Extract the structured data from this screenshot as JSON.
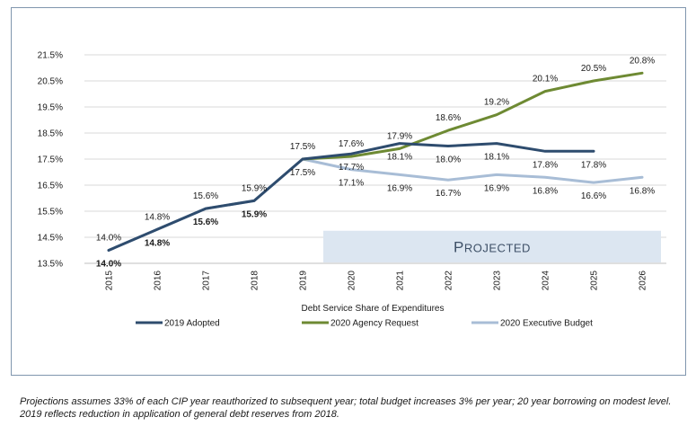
{
  "chart_data": {
    "type": "line",
    "categories": [
      "2015",
      "2016",
      "2017",
      "2018",
      "2019",
      "2020",
      "2021",
      "2022",
      "2023",
      "2024",
      "2025",
      "2026"
    ],
    "xlabel": "Debt Service Share of Expenditures",
    "ylabel": "",
    "ylim": [
      13.5,
      21.5
    ],
    "yticks": [
      13.5,
      14.5,
      15.5,
      16.5,
      17.5,
      18.5,
      19.5,
      20.5,
      21.5
    ],
    "ytick_labels": [
      "13.5%",
      "14.5%",
      "15.5%",
      "16.5%",
      "17.5%",
      "18.5%",
      "19.5%",
      "20.5%",
      "21.5%"
    ],
    "grid": "horizontal",
    "legend_position": "bottom",
    "annotation": "Projected",
    "series": [
      {
        "name": "2019 Adopted",
        "color": "#2e4c6e",
        "values": [
          14.0,
          14.8,
          15.6,
          15.9,
          17.5,
          17.7,
          18.1,
          18.0,
          18.1,
          17.8,
          17.8,
          null
        ]
      },
      {
        "name": "2020 Agency Request",
        "color": "#6e8a33",
        "values": [
          null,
          null,
          null,
          null,
          17.5,
          17.6,
          17.9,
          18.6,
          19.2,
          20.1,
          20.5,
          20.8
        ]
      },
      {
        "name": "2020 Executive Budget",
        "color": "#a8bdd6",
        "values": [
          14.0,
          14.8,
          15.6,
          15.9,
          17.5,
          17.1,
          16.9,
          16.7,
          16.9,
          16.8,
          16.6,
          16.8
        ]
      }
    ],
    "data_labels": [
      {
        "category": "2015",
        "value": 14.0,
        "text": "14.0%",
        "position": "above",
        "bold": false
      },
      {
        "category": "2016",
        "value": 14.8,
        "text": "14.8%",
        "position": "above",
        "bold": false
      },
      {
        "category": "2017",
        "value": 15.6,
        "text": "15.6%",
        "position": "above",
        "bold": false
      },
      {
        "category": "2018",
        "value": 15.9,
        "text": "15.9%",
        "position": "above",
        "bold": false
      },
      {
        "category": "2019",
        "value": 17.5,
        "text": "17.5%",
        "position": "above",
        "bold": false
      },
      {
        "category": "2020",
        "value": 17.6,
        "text": "17.6%",
        "position": "above",
        "bold": false
      },
      {
        "category": "2021",
        "value": 17.9,
        "text": "17.9%",
        "position": "above",
        "bold": false
      },
      {
        "category": "2022",
        "value": 18.6,
        "text": "18.6%",
        "position": "above",
        "bold": false
      },
      {
        "category": "2023",
        "value": 19.2,
        "text": "19.2%",
        "position": "above",
        "bold": false
      },
      {
        "category": "2024",
        "value": 20.1,
        "text": "20.1%",
        "position": "above",
        "bold": false
      },
      {
        "category": "2025",
        "value": 20.5,
        "text": "20.5%",
        "position": "above",
        "bold": false
      },
      {
        "category": "2026",
        "value": 20.8,
        "text": "20.8%",
        "position": "above",
        "bold": false
      },
      {
        "category": "2015",
        "value": 14.0,
        "text": "14.0%",
        "position": "below",
        "bold": true
      },
      {
        "category": "2016",
        "value": 14.8,
        "text": "14.8%",
        "position": "below",
        "bold": true
      },
      {
        "category": "2017",
        "value": 15.6,
        "text": "15.6%",
        "position": "below",
        "bold": true
      },
      {
        "category": "2018",
        "value": 15.9,
        "text": "15.9%",
        "position": "below",
        "bold": true
      },
      {
        "category": "2019",
        "value": 17.5,
        "text": "17.5%",
        "position": "below",
        "bold": false
      },
      {
        "category": "2020",
        "value": 17.7,
        "text": "17.7%",
        "position": "below",
        "bold": false
      },
      {
        "category": "2021",
        "value": 18.1,
        "text": "18.1%",
        "position": "below",
        "bold": false
      },
      {
        "category": "2022",
        "value": 18.0,
        "text": "18.0%",
        "position": "below",
        "bold": false
      },
      {
        "category": "2023",
        "value": 18.1,
        "text": "18.1%",
        "position": "below",
        "bold": false
      },
      {
        "category": "2024",
        "value": 17.8,
        "text": "17.8%",
        "position": "below",
        "bold": false
      },
      {
        "category": "2025",
        "value": 17.8,
        "text": "17.8%",
        "position": "below",
        "bold": false
      },
      {
        "category": "2020",
        "value": 17.1,
        "text": "17.1%",
        "position": "below",
        "bold": false
      },
      {
        "category": "2021",
        "value": 16.9,
        "text": "16.9%",
        "position": "below",
        "bold": false
      },
      {
        "category": "2022",
        "value": 16.7,
        "text": "16.7%",
        "position": "below",
        "bold": false
      },
      {
        "category": "2023",
        "value": 16.9,
        "text": "16.9%",
        "position": "below",
        "bold": false
      },
      {
        "category": "2024",
        "value": 16.8,
        "text": "16.8%",
        "position": "below",
        "bold": false
      },
      {
        "category": "2025",
        "value": 16.6,
        "text": "16.6%",
        "position": "below",
        "bold": false
      },
      {
        "category": "2026",
        "value": 16.8,
        "text": "16.8%",
        "position": "below",
        "bold": false
      }
    ]
  },
  "projected_band_color": "#dce6f1",
  "footnote": "Projections assumes 33% of each CIP year reauthorized to subsequent year; total budget increases 3% per year; 20 year borrowing on modest level.  2019 reflects reduction in application of general debt reserves from 2018."
}
